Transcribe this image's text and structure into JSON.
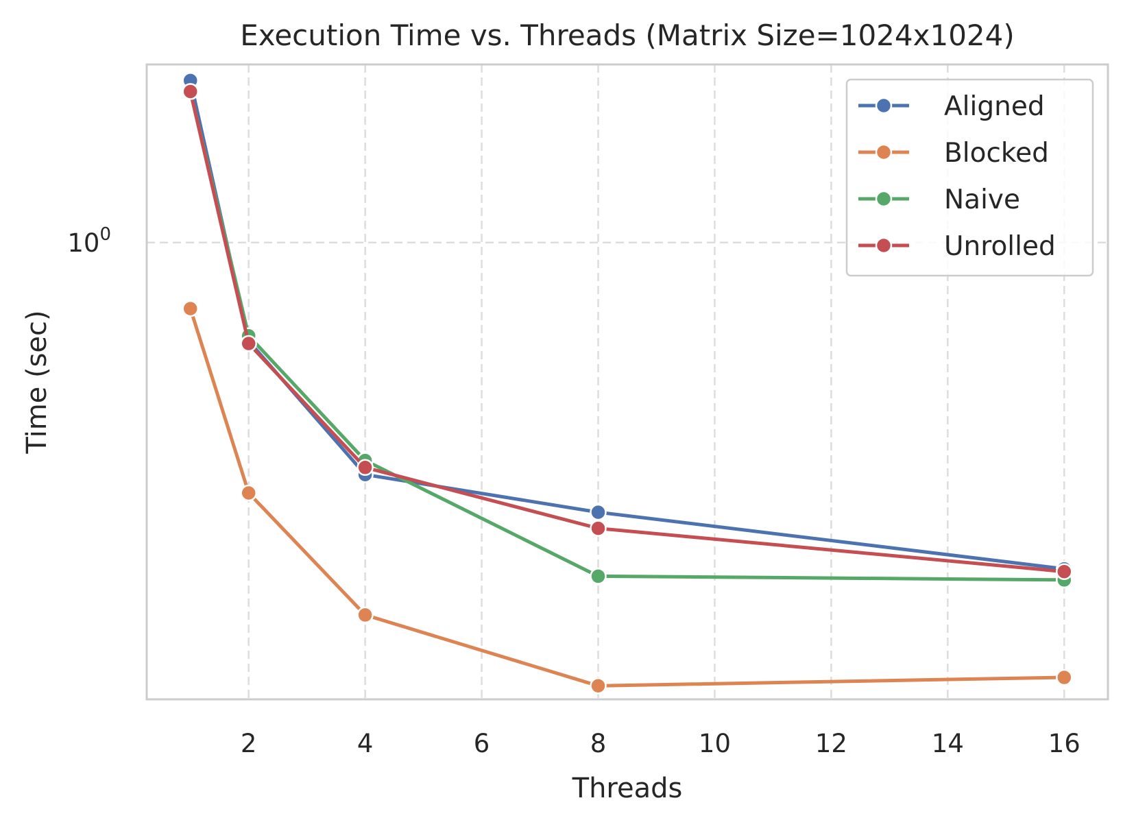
{
  "chart_data": {
    "type": "line",
    "title": "Execution Time vs. Threads (Matrix Size=1024x1024)",
    "xlabel": "Threads",
    "ylabel": "Time (sec)",
    "yscale": "log",
    "xlim": [
      0.25,
      16.75
    ],
    "ylim": [
      0.325,
      1.55
    ],
    "grid": true,
    "legend_position": "top-right",
    "x_ticks": [
      2,
      4,
      6,
      8,
      10,
      12,
      14,
      16
    ],
    "x_tick_labels": [
      "2",
      "4",
      "6",
      "8",
      "10",
      "12",
      "14",
      "16"
    ],
    "y_ticks": [
      1.0
    ],
    "y_tick_base": "10",
    "y_tick_exp": "0",
    "x": [
      1,
      2,
      4,
      8,
      16
    ],
    "series": [
      {
        "name": "Aligned",
        "color": "#4c72b0",
        "values": [
          1.49,
          0.785,
          0.565,
          0.515,
          0.448
        ]
      },
      {
        "name": "Blocked",
        "color": "#dd8452",
        "values": [
          0.85,
          0.54,
          0.4,
          0.336,
          0.343
        ]
      },
      {
        "name": "Naive",
        "color": "#55a868",
        "values": [
          1.45,
          0.795,
          0.585,
          0.44,
          0.436
        ]
      },
      {
        "name": "Unrolled",
        "color": "#c44e52",
        "values": [
          1.45,
          0.78,
          0.575,
          0.495,
          0.445
        ]
      }
    ]
  }
}
